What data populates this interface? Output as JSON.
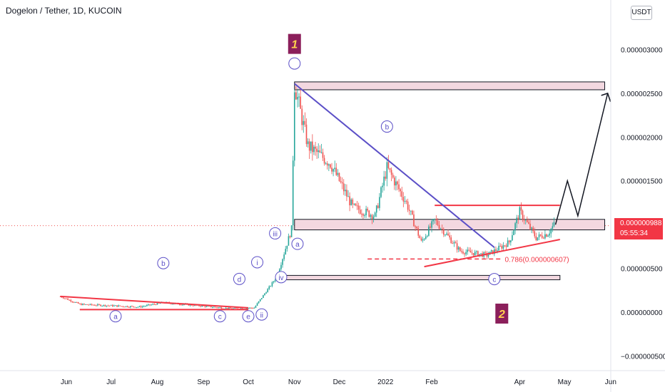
{
  "header": {
    "title": "Dogelon / Tether, 1D, KUCOIN",
    "currency": "USDT"
  },
  "price_badge": {
    "price": "0.000000988",
    "countdown": "05:55:34"
  },
  "colors": {
    "up": "#26a69a",
    "down": "#ef5350",
    "trendline_red": "#f23645",
    "trendline_blue": "#5b4fc7",
    "zone_fill": "#f3d8e0",
    "label_circle": "#5b4fc7",
    "marker_bg": "#8b1f5b",
    "marker_text": "#ffd24d"
  },
  "chart_data": {
    "type": "candlestick",
    "pair": "Dogelon / Tether",
    "interval": "1D",
    "exchange": "KUCOIN",
    "x_tick_labels": [
      "Jun",
      "Jul",
      "Aug",
      "Sep",
      "Oct",
      "Nov",
      "Dec",
      "2022",
      "Feb",
      "Apr",
      "May",
      "Jun"
    ],
    "y_tick_labels": [
      "0.000003000",
      "0.000002500",
      "0.000002000",
      "0.000001500",
      "0.000000500",
      "0.000000000",
      "−0.000000500"
    ],
    "y_ticks": [
      3e-06,
      2.5e-06,
      2e-06,
      1.5e-06,
      5e-07,
      0.0,
      -5e-07
    ],
    "ylim": [
      -5.5e-07,
      3.3e-06
    ],
    "current_price": 9.88e-07,
    "wave_labels": [
      "a",
      "b",
      "c",
      "d",
      "e",
      "i",
      "ii",
      "iii",
      "iv",
      "a",
      "b",
      "c"
    ],
    "markers": [
      "1",
      "2"
    ],
    "fib_label": "0.786(0.000000607)",
    "zones": [
      {
        "name": "upper-target-zone",
        "low": 2.54e-06,
        "high": 2.63e-06
      },
      {
        "name": "resistance-zone",
        "low": 9.4e-07,
        "high": 1.06e-06
      },
      {
        "name": "support-zone",
        "low": 3.7e-07,
        "high": 4.2e-07
      }
    ],
    "price_path": [
      {
        "date": "2021-05-28",
        "price": 1.8e-07
      },
      {
        "date": "2021-06-10",
        "price": 9e-08
      },
      {
        "date": "2021-07-20",
        "price": 6e-08
      },
      {
        "date": "2021-08-05",
        "price": 1.1e-07
      },
      {
        "date": "2021-09-20",
        "price": 4e-08
      },
      {
        "date": "2021-10-05",
        "price": 5e-08
      },
      {
        "date": "2021-10-20",
        "price": 4e-07
      },
      {
        "date": "2021-10-30",
        "price": 9.5e-07
      },
      {
        "date": "2021-11-01",
        "price": 2.6e-06
      },
      {
        "date": "2021-11-10",
        "price": 1.9e-06
      },
      {
        "date": "2021-11-25",
        "price": 1.7e-06
      },
      {
        "date": "2021-12-10",
        "price": 1.2e-06
      },
      {
        "date": "2021-12-25",
        "price": 1.1e-06
      },
      {
        "date": "2022-01-02",
        "price": 1.65e-06
      },
      {
        "date": "2022-01-15",
        "price": 1.25e-06
      },
      {
        "date": "2022-01-25",
        "price": 8e-07
      },
      {
        "date": "2022-02-03",
        "price": 1.05e-06
      },
      {
        "date": "2022-02-20",
        "price": 7e-07
      },
      {
        "date": "2022-03-10",
        "price": 6.5e-07
      },
      {
        "date": "2022-03-25",
        "price": 8e-07
      },
      {
        "date": "2022-04-01",
        "price": 1.15e-06
      },
      {
        "date": "2022-04-12",
        "price": 8.5e-07
      },
      {
        "date": "2022-04-20",
        "price": 9e-07
      },
      {
        "date": "2022-04-24",
        "price": 1e-06
      }
    ],
    "projection": [
      {
        "date": "2022-04-25",
        "price": 1e-06
      },
      {
        "date": "2022-05-03",
        "price": 1.5e-06
      },
      {
        "date": "2022-05-10",
        "price": 1.1e-06
      },
      {
        "date": "2022-05-30",
        "price": 2.5e-06
      }
    ]
  }
}
